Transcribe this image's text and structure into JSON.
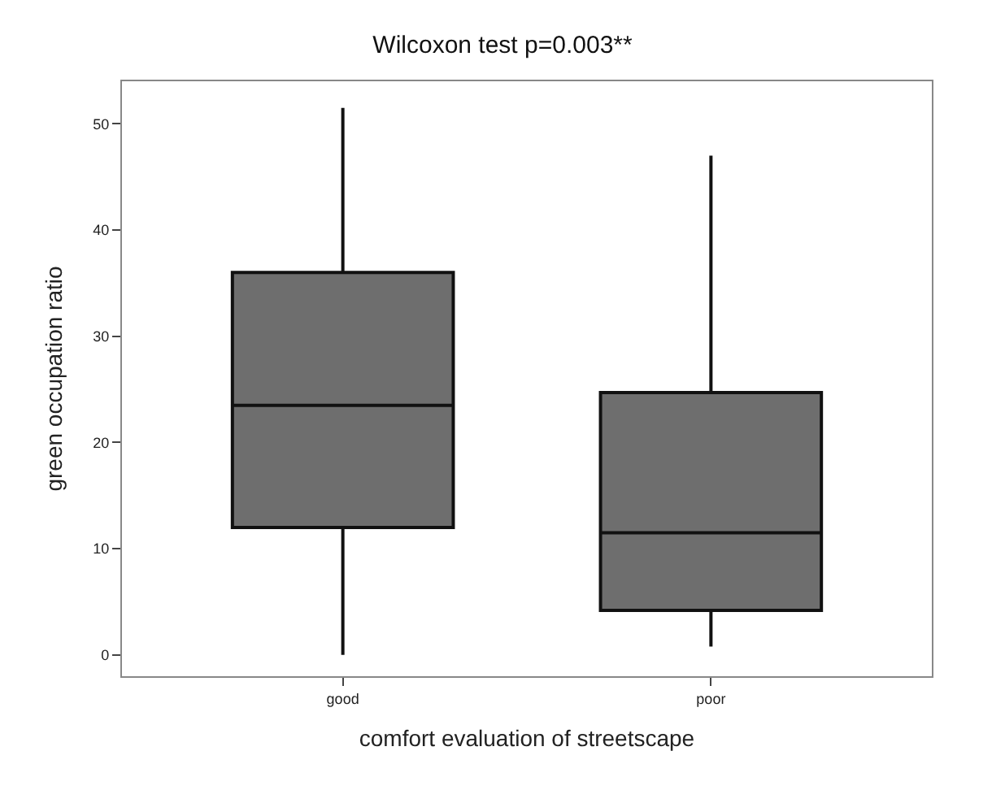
{
  "chart_data": {
    "type": "box",
    "title": "Wilcoxon test p=0.003**",
    "xlabel": "comfort evaluation of streetscape",
    "ylabel": "green occupation ratio",
    "categories": [
      "good",
      "poor"
    ],
    "series": [
      {
        "color": "#6e6e6e",
        "boxes": [
          {
            "low": 0,
            "q1": 12,
            "median": 23.5,
            "q3": 36,
            "high": 51.5
          },
          {
            "low": 0.8,
            "q1": 4.2,
            "median": 11.5,
            "q3": 24.7,
            "high": 47
          }
        ]
      }
    ],
    "ylim": [
      -2,
      54
    ],
    "yticks": [
      0,
      10,
      20,
      30,
      40,
      50
    ],
    "legend": false
  }
}
